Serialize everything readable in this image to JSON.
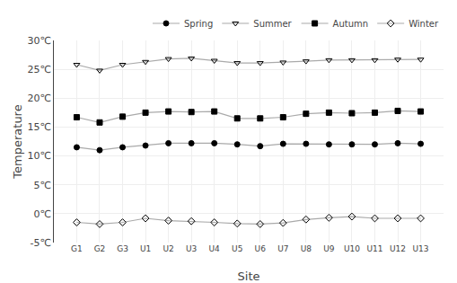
{
  "chart_data": {
    "type": "line",
    "xlabel": "Site",
    "ylabel": "Temperature",
    "categories": [
      "G1",
      "G2",
      "G3",
      "U1",
      "U2",
      "U3",
      "U4",
      "U5",
      "U6",
      "U7",
      "U8",
      "U9",
      "U10",
      "U11",
      "U12",
      "U13"
    ],
    "series": [
      {
        "name": "Spring",
        "color": "#aaaaaa",
        "marker": "circle",
        "values": [
          11.5,
          11.0,
          11.5,
          11.8,
          12.2,
          12.2,
          12.2,
          12.0,
          11.7,
          12.1,
          12.1,
          12.0,
          12.0,
          12.0,
          12.2,
          12.1
        ]
      },
      {
        "name": "Summer",
        "color": "#aaaaaa",
        "marker": "triangle-down-open",
        "values": [
          25.8,
          24.8,
          25.8,
          26.3,
          26.8,
          26.9,
          26.5,
          26.1,
          26.1,
          26.2,
          26.4,
          26.6,
          26.6,
          26.6,
          26.7,
          26.7
        ]
      },
      {
        "name": "Autumn",
        "color": "#aaaaaa",
        "marker": "square",
        "values": [
          16.7,
          15.8,
          16.8,
          17.5,
          17.7,
          17.6,
          17.7,
          16.5,
          16.5,
          16.7,
          17.3,
          17.5,
          17.4,
          17.5,
          17.8,
          17.7
        ]
      },
      {
        "name": "Winter",
        "color": "#aaaaaa",
        "marker": "diamond-open",
        "values": [
          -1.5,
          -1.8,
          -1.5,
          -0.8,
          -1.2,
          -1.3,
          -1.5,
          -1.7,
          -1.8,
          -1.6,
          -1.0,
          -0.7,
          -0.5,
          -0.8,
          -0.8,
          -0.8
        ]
      }
    ],
    "ylim": [
      -5,
      30
    ],
    "yticks": [
      {
        "value": -5,
        "label": "-5℃"
      },
      {
        "value": 0,
        "label": "0℃"
      },
      {
        "value": 5,
        "label": "5℃"
      },
      {
        "value": 10,
        "label": "10℃"
      },
      {
        "value": 15,
        "label": "15℃"
      },
      {
        "value": 20,
        "label": "20℃"
      },
      {
        "value": 25,
        "label": "25℃"
      },
      {
        "value": 30,
        "label": "30℃"
      }
    ],
    "grid": true,
    "legend": "upper right"
  }
}
